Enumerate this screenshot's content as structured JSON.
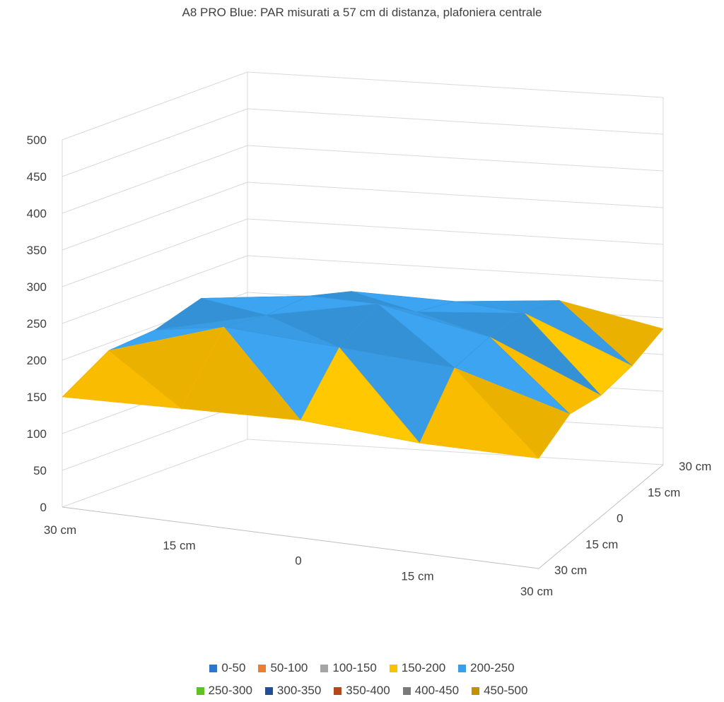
{
  "chart_data": {
    "type": "surface",
    "title": "A8 PRO Blue: PAR misurati a 57 cm di distanza, plafoniera centrale",
    "z_axis": {
      "range": [
        0,
        500
      ],
      "ticks": [
        "0",
        "50",
        "100",
        "150",
        "200",
        "250",
        "300",
        "350",
        "400",
        "450",
        "500"
      ]
    },
    "x_axis": {
      "tick_labels": [
        "30 cm",
        "15 cm",
        "0",
        "15 cm",
        "30 cm"
      ]
    },
    "y_axis": {
      "tick_labels": [
        "30 cm",
        "15 cm",
        "0",
        "15 cm",
        "30 cm"
      ]
    },
    "grid": true,
    "legend_position": "bottom",
    "bands": [
      {
        "label": "0-50",
        "color": "#2e75d0"
      },
      {
        "label": "50-100",
        "color": "#ed7d31"
      },
      {
        "label": "100-150",
        "color": "#a5a5a5"
      },
      {
        "label": "150-200",
        "color": "#ffc000"
      },
      {
        "label": "200-250",
        "color": "#3a9ee8"
      },
      {
        "label": "250-300",
        "color": "#5fc21e"
      },
      {
        "label": "300-350",
        "color": "#1f4e9c"
      },
      {
        "label": "350-400",
        "color": "#b5471c"
      },
      {
        "label": "400-450",
        "color": "#7a7a7a"
      },
      {
        "label": "450-500",
        "color": "#c29000"
      }
    ],
    "values": [
      [
        150,
        155,
        160,
        150,
        150
      ],
      [
        190,
        240,
        230,
        220,
        175
      ],
      [
        195,
        230,
        260,
        230,
        165
      ],
      [
        215,
        230,
        220,
        230,
        170
      ],
      [
        170,
        210,
        205,
        215,
        185
      ]
    ]
  }
}
